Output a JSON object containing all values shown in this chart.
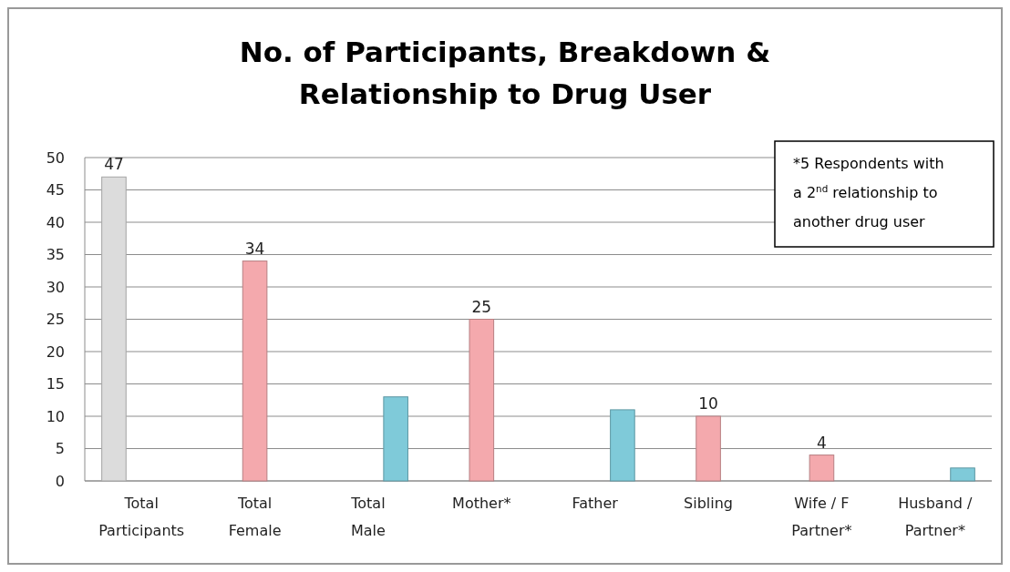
{
  "chart_data": {
    "type": "bar",
    "title": "No. of Participants, Breakdown & Relationship to Drug User",
    "categories": [
      "Total Participants",
      "Total Female",
      "Total Male",
      "Mother*",
      "Father",
      "Sibling",
      "Wife / F Partner*",
      "Husband / Partner*"
    ],
    "series": [
      {
        "color": "#dcdcdc",
        "values": [
          47,
          null,
          null,
          null,
          null,
          null,
          null,
          null
        ],
        "value_labels": [
          "47",
          null,
          null,
          null,
          null,
          null,
          null,
          null
        ]
      },
      {
        "color": "#f4a9ad",
        "values": [
          null,
          34,
          null,
          25,
          null,
          10,
          4,
          null
        ],
        "value_labels": [
          null,
          "34",
          null,
          "25",
          null,
          "10",
          "4",
          null
        ]
      },
      {
        "color": "#7fcad9",
        "values": [
          null,
          null,
          13,
          null,
          11,
          null,
          null,
          2
        ],
        "value_labels": [
          null,
          null,
          null,
          null,
          null,
          null,
          null,
          null
        ]
      }
    ],
    "ylim": [
      0,
      50
    ],
    "yticks": [
      0,
      5,
      10,
      15,
      20,
      25,
      30,
      35,
      40,
      45,
      50
    ],
    "grid": "y",
    "annotations": [
      "*5 Respondents with a 2$^{nd}$ relationship to another drug user"
    ]
  }
}
